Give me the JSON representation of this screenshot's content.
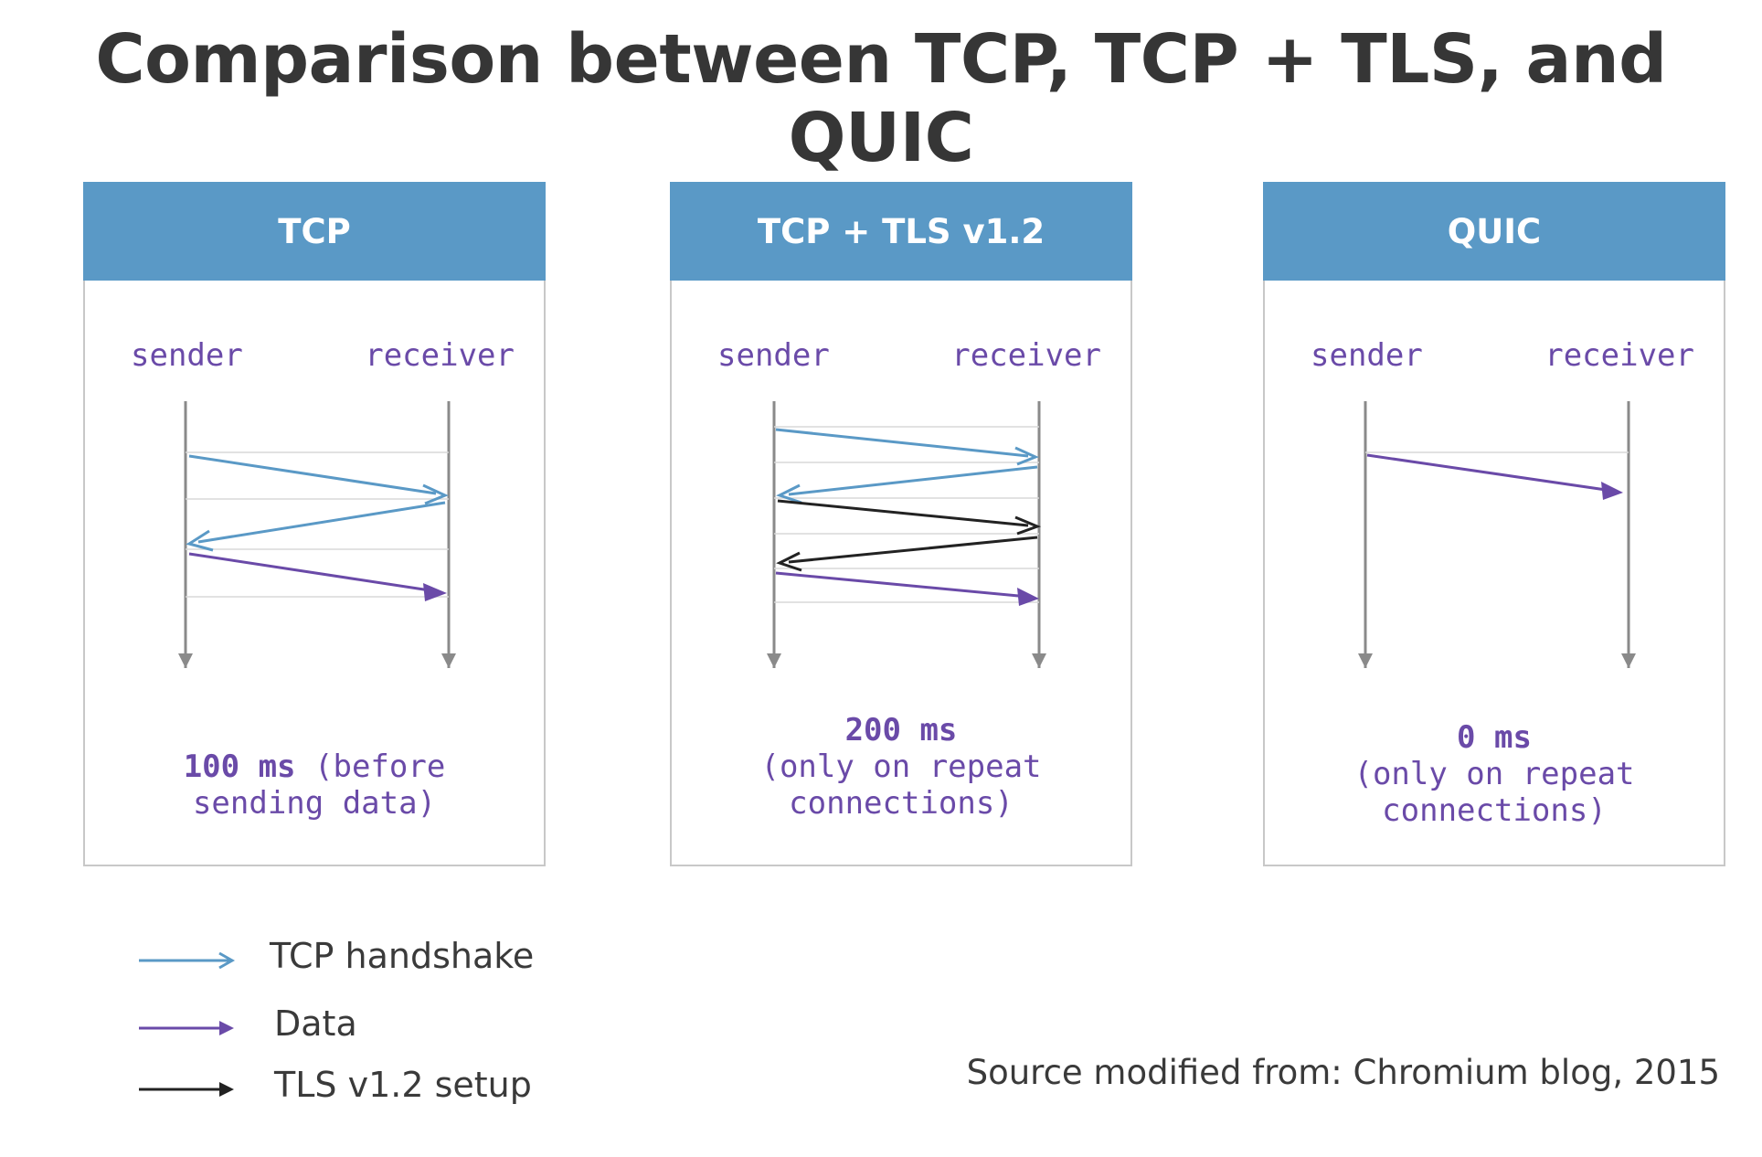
{
  "title": "Comparison between TCP, TCP + TLS, and QUIC",
  "panels": [
    {
      "header": "TCP",
      "sender_label": "sender",
      "receiver_label": "receiver",
      "timing_value": "100 ms",
      "timing_line1_rest": " (before",
      "timing_line2": "sending data)",
      "timing_line3": "",
      "messages": [
        {
          "dir": "right",
          "kind": "handshake"
        },
        {
          "dir": "left",
          "kind": "handshake"
        },
        {
          "dir": "right",
          "kind": "data"
        }
      ]
    },
    {
      "header": "TCP + TLS v1.2",
      "sender_label": "sender",
      "receiver_label": "receiver",
      "timing_value": "200 ms",
      "timing_line1_rest": "",
      "timing_line2": "(only on repeat",
      "timing_line3": "connections)",
      "messages": [
        {
          "dir": "right",
          "kind": "handshake"
        },
        {
          "dir": "left",
          "kind": "handshake"
        },
        {
          "dir": "right",
          "kind": "tls"
        },
        {
          "dir": "left",
          "kind": "tls"
        },
        {
          "dir": "right",
          "kind": "data"
        }
      ]
    },
    {
      "header": "QUIC",
      "sender_label": "sender",
      "receiver_label": "receiver",
      "timing_value": "0 ms",
      "timing_line1_rest": "",
      "timing_line2": "(only on repeat",
      "timing_line3": "connections)",
      "messages": [
        {
          "dir": "right",
          "kind": "data"
        }
      ]
    }
  ],
  "legend": [
    {
      "kind": "handshake",
      "label": "TCP handshake"
    },
    {
      "kind": "data",
      "label": "Data"
    },
    {
      "kind": "tls",
      "label": "TLS v1.2 setup"
    }
  ],
  "colors": {
    "handshake": "#5a99c6",
    "data": "#6a4aa8",
    "tls": "#222222",
    "header_bg": "#5a99c6",
    "timeline": "#8a8a8a"
  },
  "source": "Source modified from:  Chromium blog, 2015"
}
